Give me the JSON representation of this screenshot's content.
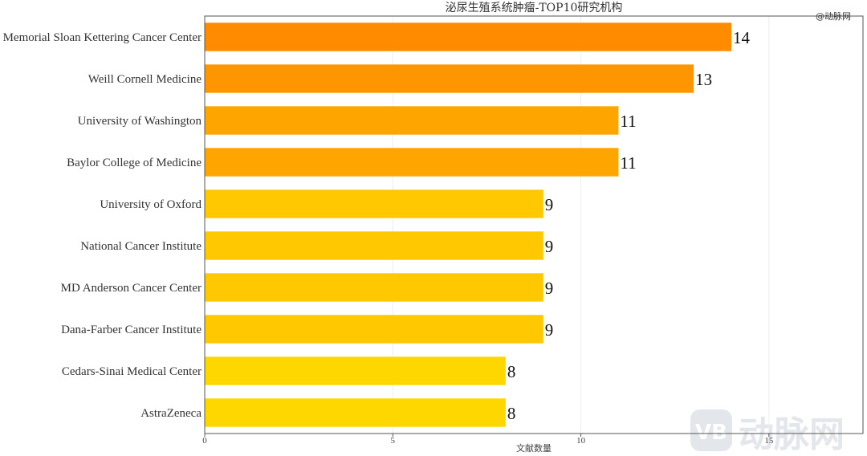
{
  "credit": "@动脉网",
  "watermark": {
    "logo_letters": "VB",
    "text": "动脉网"
  },
  "chart_data": {
    "type": "bar",
    "orientation": "horizontal",
    "title": "泌尿生殖系统肿瘤-TOP10研究机构",
    "xlabel": "文献数量",
    "ylabel": "",
    "xlim": [
      0,
      17.5
    ],
    "xticks": [
      0,
      5,
      10,
      15
    ],
    "grid": true,
    "categories": [
      "Memorial Sloan Kettering Cancer Center",
      "Weill Cornell Medicine",
      "University of Washington",
      "Baylor College of Medicine",
      "University of Oxford",
      "National Cancer Institute",
      "MD Anderson Cancer Center",
      "Dana-Farber Cancer Institute",
      "Cedars-Sinai Medical Center",
      "AstraZeneca"
    ],
    "values": [
      14,
      13,
      11,
      11,
      9,
      9,
      9,
      9,
      8,
      8
    ],
    "colors": [
      "#FF8C00",
      "#FF9500",
      "#FFA500",
      "#FFA500",
      "#FFC800",
      "#FFC800",
      "#FFC800",
      "#FFC800",
      "#FFD700",
      "#FFD700"
    ]
  }
}
